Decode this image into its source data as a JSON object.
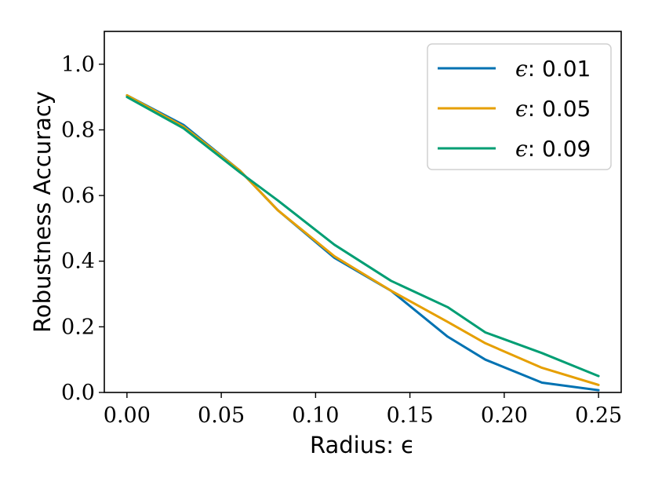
{
  "chart_data": {
    "type": "line",
    "xlabel": "Radius: ϵ",
    "ylabel": "Robustness Accuracy",
    "xlim": [
      -0.012,
      0.262
    ],
    "ylim": [
      0.0,
      1.1
    ],
    "xticks": [
      0.0,
      0.05,
      0.1,
      0.15,
      0.2,
      0.25
    ],
    "xtick_labels": [
      "0.00",
      "0.05",
      "0.10",
      "0.15",
      "0.20",
      "0.25"
    ],
    "yticks": [
      0.0,
      0.2,
      0.4,
      0.6,
      0.8,
      1.0
    ],
    "ytick_labels": [
      "0.0",
      "0.2",
      "0.4",
      "0.6",
      "0.8",
      "1.0"
    ],
    "x": [
      0.0,
      0.03,
      0.06,
      0.08,
      0.11,
      0.14,
      0.17,
      0.19,
      0.22,
      0.25
    ],
    "series": [
      {
        "name": "ϵ: 0.01",
        "color": "#0072b2",
        "values": [
          0.905,
          0.815,
          0.675,
          0.555,
          0.41,
          0.31,
          0.17,
          0.1,
          0.03,
          0.007
        ]
      },
      {
        "name": "ϵ: 0.05",
        "color": "#e69f00",
        "values": [
          0.905,
          0.81,
          0.675,
          0.555,
          0.415,
          0.31,
          0.215,
          0.15,
          0.075,
          0.023
        ]
      },
      {
        "name": "ϵ: 0.09",
        "color": "#009e73",
        "values": [
          0.9,
          0.805,
          0.67,
          0.585,
          0.45,
          0.34,
          0.26,
          0.183,
          0.12,
          0.05
        ]
      }
    ],
    "legend_entries": [
      {
        "symbol": "ϵ",
        "value": "0.01"
      },
      {
        "symbol": "ϵ",
        "value": "0.05"
      },
      {
        "symbol": "ϵ",
        "value": "0.09"
      }
    ],
    "legend_position": "top-right",
    "grid": false
  }
}
